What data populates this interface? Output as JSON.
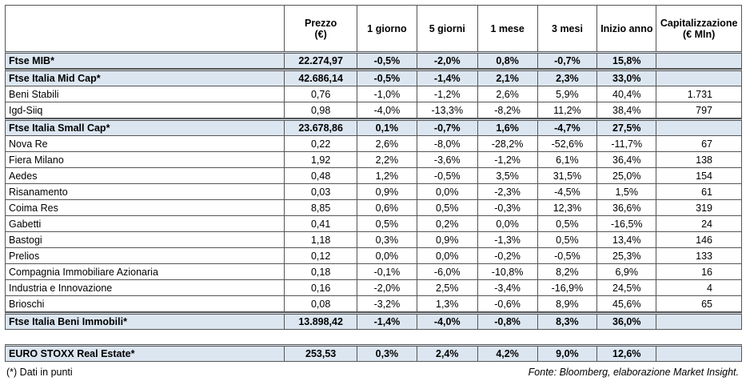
{
  "table": {
    "header": [
      [
        "Prezzo",
        "(€)"
      ],
      [
        "1 giorno"
      ],
      [
        "5 giorni"
      ],
      [
        "1 mese"
      ],
      [
        "3 mesi"
      ],
      [
        "Inizio anno"
      ],
      [
        "Capitalizzazione",
        "(€ Mln)"
      ]
    ],
    "rows": [
      [
        "Ftse MIB*",
        "22.274,97",
        "-0,5%",
        "-2,0%",
        "0,8%",
        "-0,7%",
        "15,8%"
      ],
      [
        "Ftse Italia Mid Cap*",
        "42.686,14",
        "-0,5%",
        "-1,4%",
        "2,1%",
        "2,3%",
        "33,0%"
      ],
      [
        "Beni Stabili",
        "0,76",
        "-1,0%",
        "-1,2%",
        "2,6%",
        "5,9%",
        "40,4%",
        "1.731"
      ],
      [
        "Igd-Siiq",
        "0,98",
        "-4,0%",
        "-13,3%",
        "-8,2%",
        "11,2%",
        "38,4%",
        "797"
      ],
      [
        "Ftse Italia Small Cap*",
        "23.678,86",
        "0,1%",
        "-0,7%",
        "1,6%",
        "-4,7%",
        "27,5%"
      ],
      [
        "Nova Re",
        "0,22",
        "2,6%",
        "-8,0%",
        "-28,2%",
        "-52,6%",
        "-11,7%",
        "67"
      ],
      [
        "Fiera Milano",
        "1,92",
        "2,2%",
        "-3,6%",
        "-1,2%",
        "6,1%",
        "36,4%",
        "138"
      ],
      [
        "Aedes",
        "0,48",
        "1,2%",
        "-0,5%",
        "3,5%",
        "31,5%",
        "25,0%",
        "154"
      ],
      [
        "Risanamento",
        "0,03",
        "0,9%",
        "0,0%",
        "-2,3%",
        "-4,5%",
        "1,5%",
        "61"
      ],
      [
        "Coima Res",
        "8,85",
        "0,6%",
        "0,5%",
        "-0,3%",
        "12,3%",
        "36,6%",
        "319"
      ],
      [
        "Gabetti",
        "0,41",
        "0,5%",
        "0,2%",
        "0,0%",
        "0,5%",
        "-16,5%",
        "24"
      ],
      [
        "Bastogi",
        "1,18",
        "0,3%",
        "0,9%",
        "-1,3%",
        "0,5%",
        "13,4%",
        "146"
      ],
      [
        "Prelios",
        "0,12",
        "0,0%",
        "0,0%",
        "-0,2%",
        "-0,5%",
        "25,3%",
        "133"
      ],
      [
        "Compagnia Immobiliare Azionaria",
        "0,18",
        "-0,1%",
        "-6,0%",
        "-10,8%",
        "8,2%",
        "6,9%",
        "16"
      ],
      [
        "Industria e Innovazione",
        "0,16",
        "-2,0%",
        "2,5%",
        "-3,4%",
        "-16,9%",
        "24,5%",
        "4"
      ],
      [
        "Brioschi",
        "0,08",
        "-3,2%",
        "1,3%",
        "-0,6%",
        "8,9%",
        "45,6%",
        "65"
      ],
      [
        "Ftse Italia Beni Immobili*",
        "13.898,42",
        "-1,4%",
        "-4,0%",
        "-0,8%",
        "8,3%",
        "36,0%"
      ]
    ],
    "benchmark": [
      "EURO STOXX Real Estate*",
      "253,53",
      "0,3%",
      "2,4%",
      "4,2%",
      "9,0%",
      "12,6%"
    ],
    "note": "(*) Dati in punti",
    "source": "Fonte: Bloomberg, elaborazione Market Insight."
  }
}
